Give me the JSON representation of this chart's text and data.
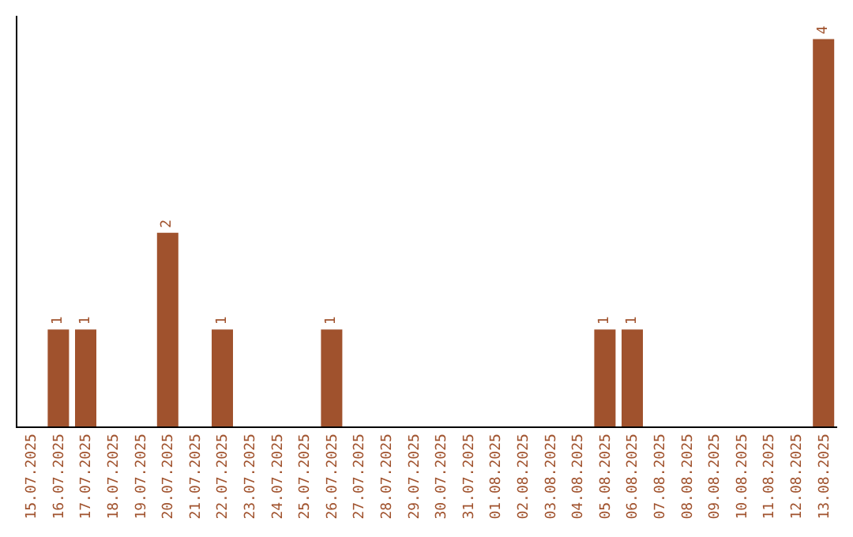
{
  "chart_data": {
    "type": "bar",
    "categories": [
      "15.07.2025",
      "16.07.2025",
      "17.07.2025",
      "18.07.2025",
      "19.07.2025",
      "20.07.2025",
      "21.07.2025",
      "22.07.2025",
      "23.07.2025",
      "24.07.2025",
      "25.07.2025",
      "26.07.2025",
      "27.07.2025",
      "28.07.2025",
      "29.07.2025",
      "30.07.2025",
      "31.07.2025",
      "01.08.2025",
      "02.08.2025",
      "03.08.2025",
      "04.08.2025",
      "05.08.2025",
      "06.08.2025",
      "07.08.2025",
      "08.08.2025",
      "09.08.2025",
      "10.08.2025",
      "11.08.2025",
      "12.08.2025",
      "13.08.2025"
    ],
    "values": [
      0,
      1,
      1,
      0,
      0,
      2,
      0,
      1,
      0,
      0,
      0,
      1,
      0,
      0,
      0,
      0,
      0,
      0,
      0,
      0,
      0,
      1,
      1,
      0,
      0,
      0,
      0,
      0,
      0,
      4
    ],
    "value_labels": [
      null,
      "1",
      "1",
      null,
      null,
      "2",
      null,
      "1",
      null,
      null,
      null,
      "1",
      null,
      null,
      null,
      null,
      null,
      null,
      null,
      null,
      null,
      "1",
      "1",
      null,
      null,
      null,
      null,
      null,
      null,
      "4"
    ],
    "color": "#a0522d",
    "tick_labels": "x"
  }
}
